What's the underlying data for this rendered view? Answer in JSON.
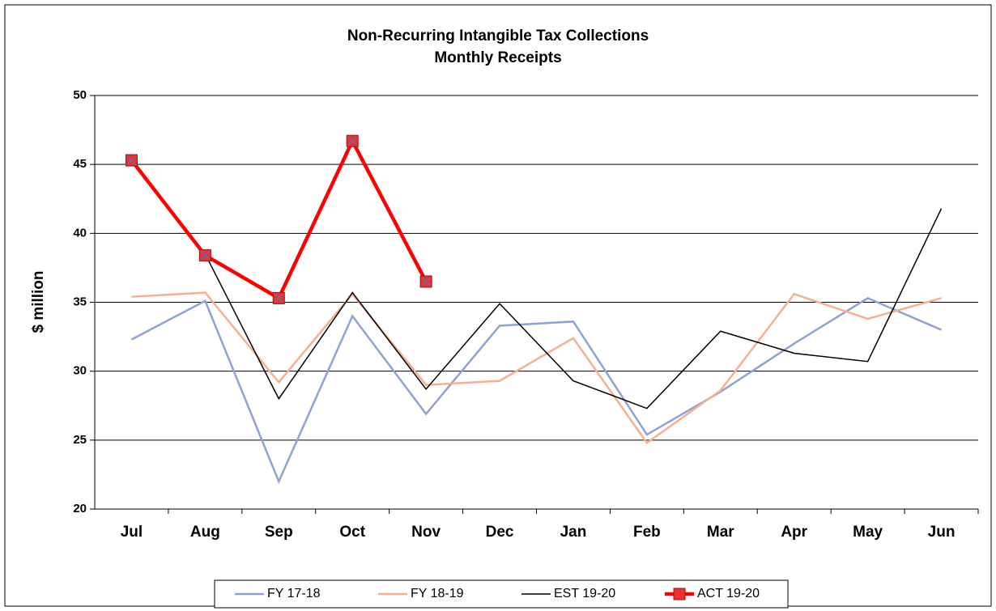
{
  "chart_data": {
    "type": "line",
    "title": "Non-Recurring Intangible Tax Collections",
    "subtitle": "Monthly Receipts",
    "y_label": "$ million",
    "categories": [
      "Jul",
      "Aug",
      "Sep",
      "Oct",
      "Nov",
      "Dec",
      "Jan",
      "Feb",
      "Mar",
      "Apr",
      "May",
      "Jun"
    ],
    "series": [
      {
        "name": "FY 17-18",
        "color": "#8fa2d4",
        "width": 2.5,
        "values": [
          32.3,
          35.1,
          22.0,
          34.0,
          26.9,
          33.3,
          33.6,
          25.4,
          28.5,
          32.0,
          35.3,
          33.0
        ]
      },
      {
        "name": "FY 18-19",
        "color": "#f4b08f",
        "width": 2.5,
        "values": [
          35.4,
          35.7,
          29.2,
          35.6,
          29.0,
          29.3,
          32.4,
          24.8,
          28.6,
          35.6,
          33.8,
          35.3
        ]
      },
      {
        "name": "EST 19-20",
        "color": "#000000",
        "width": 1.5,
        "values": [
          null,
          38.5,
          28.0,
          35.7,
          28.7,
          34.9,
          29.3,
          27.3,
          32.9,
          31.3,
          30.7,
          41.8
        ]
      },
      {
        "name": "ACT 19-20",
        "color": "#ff0000",
        "width": 4.5,
        "marker": "square",
        "values": [
          45.3,
          38.4,
          35.3,
          46.7,
          36.5,
          null,
          null,
          null,
          null,
          null,
          null,
          null
        ]
      }
    ],
    "ylim": [
      20,
      50
    ],
    "yticks": [
      20,
      25,
      30,
      35,
      40,
      45,
      50
    ],
    "grid": true,
    "legend": "bottom"
  }
}
